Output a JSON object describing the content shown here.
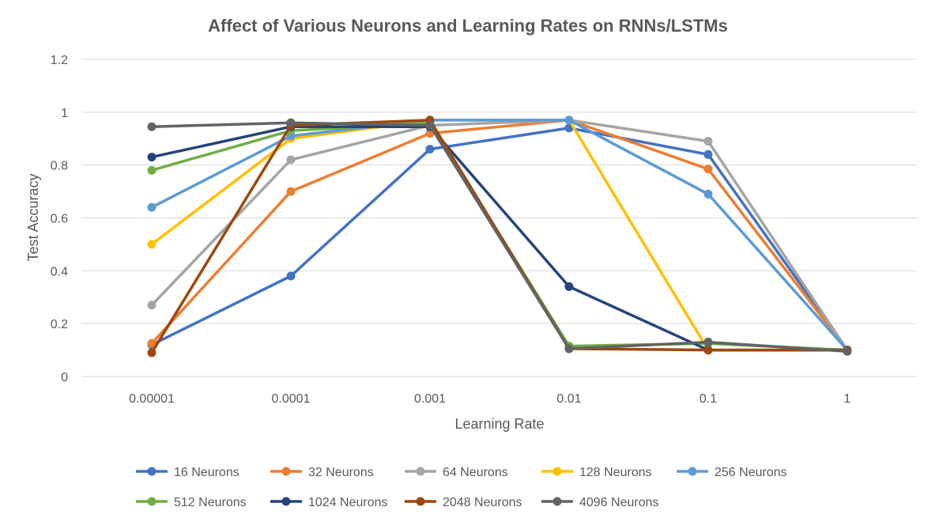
{
  "chart_data": {
    "type": "line",
    "title": "Affect of Various Neurons and Learning Rates on RNNs/LSTMs",
    "xlabel": "Learning Rate",
    "ylabel": "Test Accuracy",
    "categories": [
      "0.00001",
      "0.0001",
      "0.001",
      "0.01",
      "0.1",
      "1"
    ],
    "yticks": [
      "0",
      "0.2",
      "0.4",
      "0.6",
      "0.8",
      "1",
      "1.2"
    ],
    "ylim": [
      0,
      1.2
    ],
    "grid": "horizontal",
    "legend_position": "bottom",
    "series": [
      {
        "name": "16 Neurons",
        "color": "#4472C4",
        "values": [
          0.12,
          0.38,
          0.86,
          0.94,
          0.84,
          0.1
        ]
      },
      {
        "name": "32 Neurons",
        "color": "#ED7D31",
        "values": [
          0.125,
          0.7,
          0.92,
          0.97,
          0.785,
          0.1
        ]
      },
      {
        "name": "64 Neurons",
        "color": "#A5A5A5",
        "values": [
          0.27,
          0.82,
          0.95,
          0.97,
          0.89,
          0.1
        ]
      },
      {
        "name": "128 Neurons",
        "color": "#FFC000",
        "values": [
          0.5,
          0.9,
          0.97,
          0.97,
          0.1,
          0.1
        ]
      },
      {
        "name": "256 Neurons",
        "color": "#5B9BD5",
        "values": [
          0.64,
          0.91,
          0.97,
          0.97,
          0.69,
          0.1
        ]
      },
      {
        "name": "512 Neurons",
        "color": "#70AD47",
        "values": [
          0.78,
          0.93,
          0.96,
          0.115,
          0.125,
          0.1
        ]
      },
      {
        "name": "1024 Neurons",
        "color": "#264478",
        "values": [
          0.83,
          0.945,
          0.945,
          0.34,
          0.1,
          0.1
        ]
      },
      {
        "name": "2048 Neurons",
        "color": "#9E480E",
        "values": [
          0.09,
          0.95,
          0.97,
          0.105,
          0.1,
          0.1
        ]
      },
      {
        "name": "4096 Neurons",
        "color": "#636363",
        "values": [
          0.945,
          0.96,
          0.95,
          0.105,
          0.13,
          0.095
        ]
      }
    ]
  }
}
